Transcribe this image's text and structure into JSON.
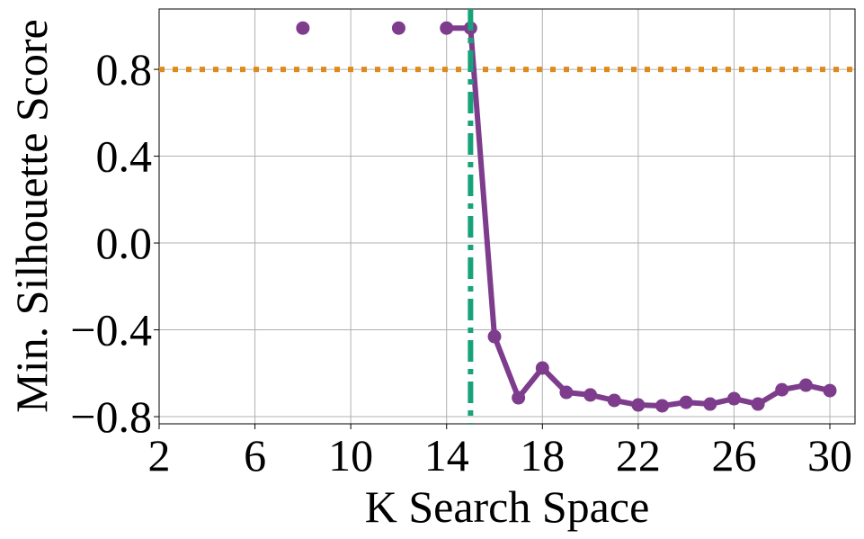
{
  "chart_data": {
    "type": "line",
    "xlabel": "K Search Space",
    "ylabel": "Min. Silhouette Score",
    "x": [
      8,
      9,
      10,
      11,
      12,
      13,
      14,
      15,
      16,
      17,
      18,
      19,
      20,
      21,
      22,
      23,
      24,
      25,
      26,
      27,
      28,
      29,
      30
    ],
    "values": [
      0.99,
      null,
      null,
      null,
      0.99,
      null,
      0.99,
      0.99,
      -0.431,
      -0.713,
      -0.576,
      -0.688,
      -0.7,
      -0.725,
      -0.746,
      -0.75,
      -0.734,
      -0.742,
      -0.717,
      -0.742,
      -0.676,
      -0.655,
      -0.68
    ],
    "color": "#7d3c8c",
    "hline": 0.8,
    "hline_color": "#e08a1c",
    "vline": 15,
    "vline_color": "#17a37a",
    "xlim": [
      2,
      31.05
    ],
    "ylim": [
      -0.833,
      1.078
    ],
    "xticks": [
      2,
      6,
      10,
      14,
      18,
      22,
      26,
      30
    ],
    "yticks": [
      {
        "value": -0.8,
        "label": "−0.8"
      },
      {
        "value": -0.4,
        "label": "−0.4"
      },
      {
        "value": 0,
        "label": "0.0"
      },
      0.4,
      0.8
    ],
    "grid": true
  }
}
